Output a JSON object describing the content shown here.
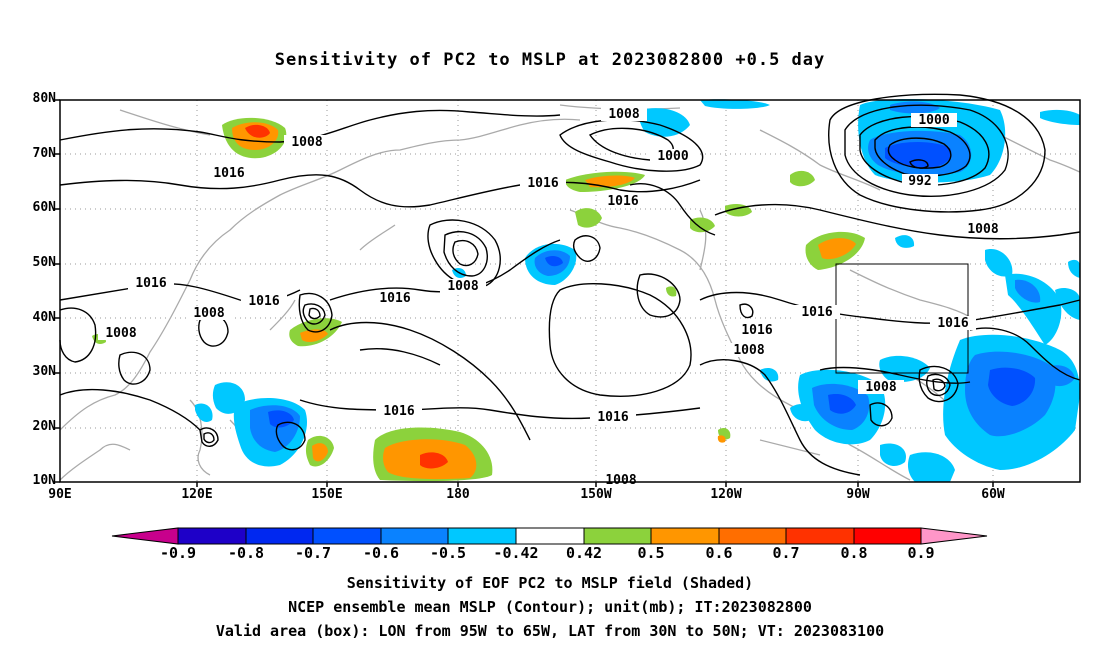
{
  "title": "Sensitivity of PC2 to MSLP at 2023082800 +0.5 day",
  "lat_labels": [
    "80N",
    "70N",
    "60N",
    "50N",
    "40N",
    "30N",
    "20N",
    "10N"
  ],
  "lon_labels": [
    "90E",
    "120E",
    "150E",
    "180",
    "150W",
    "120W",
    "90W",
    "60W"
  ],
  "colorbar": {
    "labels": [
      "-0.9",
      "-0.8",
      "-0.7",
      "-0.6",
      "-0.5",
      "-0.42",
      "0.42",
      "0.5",
      "0.6",
      "0.7",
      "0.8",
      "0.9"
    ],
    "colors": [
      "#c8008c",
      "#1e00c8",
      "#0028f0",
      "#0050ff",
      "#0a82ff",
      "#00c8ff",
      "#ffffff",
      "#8cd23c",
      "#ff9600",
      "#ff6e00",
      "#ff3200",
      "#ff0000",
      "#ff96c8"
    ]
  },
  "contour_labels": [
    "1008",
    "1008",
    "1016",
    "1000",
    "1016",
    "1016",
    "1008",
    "1016",
    "1008",
    "1016",
    "1008",
    "1016",
    "1008",
    "1016",
    "1016",
    "1008",
    "1000",
    "992",
    "1008",
    "1016",
    "1016",
    "1016",
    "1008",
    "1008"
  ],
  "caption": {
    "line1": "Sensitivity of EOF PC2 to MSLP field (Shaded)",
    "line2": "NCEP ensemble mean MSLP (Contour); unit(mb); IT:2023082800",
    "line3": "Valid area (box): LON from 95W to 65W, LAT from 30N to 50N; VT: 2023083100"
  }
}
